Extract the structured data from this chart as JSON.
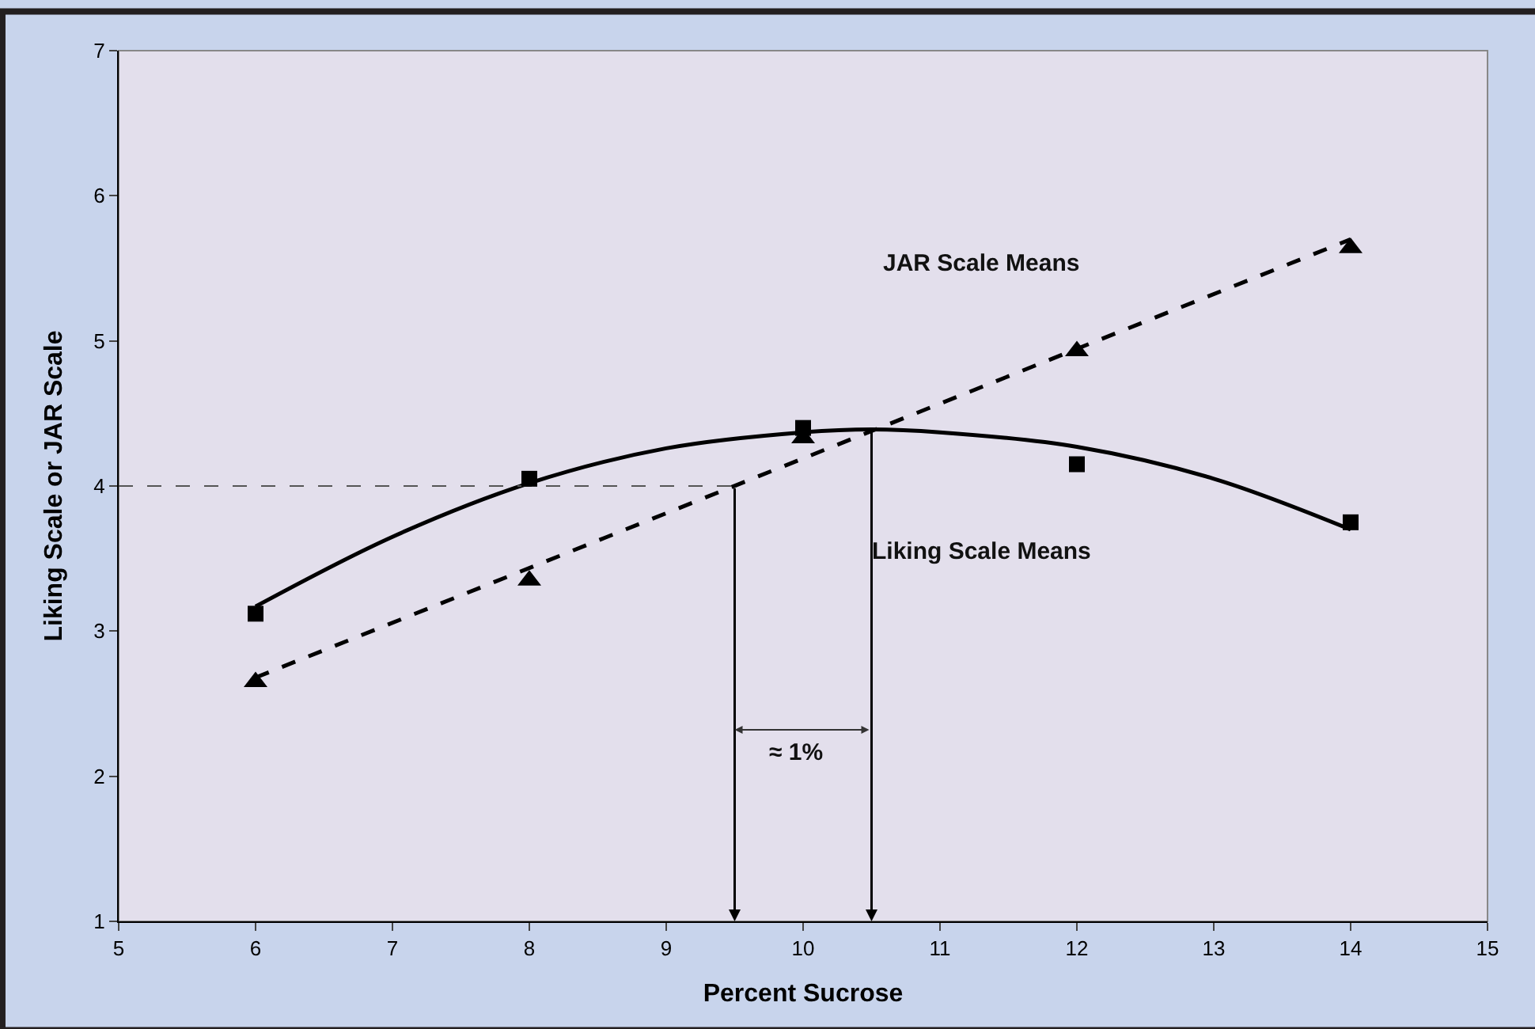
{
  "chart_data": {
    "type": "scatter",
    "xlabel": "Percent Sucrose",
    "ylabel": "Liking Scale or JAR Scale",
    "xlim": [
      5,
      15
    ],
    "xticks": [
      5,
      6,
      7,
      8,
      9,
      10,
      11,
      12,
      13,
      14,
      15
    ],
    "ylim": [
      1,
      7
    ],
    "yticks": [
      1,
      2,
      3,
      4,
      5,
      6,
      7
    ],
    "grid": false,
    "series": [
      {
        "marker": "square",
        "color": "#000000",
        "x": [
          6,
          8,
          10,
          12,
          14
        ],
        "values": [
          3.12,
          4.05,
          4.4,
          4.15,
          3.75
        ]
      },
      {
        "marker": "triangle",
        "color": "#000000",
        "x": [
          6,
          8,
          10,
          12,
          14
        ],
        "values": [
          2.65,
          3.35,
          4.33,
          4.93,
          5.64
        ]
      },
      {
        "type": "line",
        "line_style": "solid",
        "color": "#000000",
        "x": [
          6,
          7,
          8,
          9,
          10,
          10.5,
          11,
          12,
          13,
          14
        ],
        "values": [
          3.17,
          3.65,
          4.02,
          4.26,
          4.37,
          4.39,
          4.37,
          4.27,
          4.05,
          3.7
        ]
      },
      {
        "type": "line",
        "line_style": "dashed",
        "color": "#000000",
        "x": [
          6,
          14
        ],
        "values": [
          2.68,
          5.7
        ]
      },
      {
        "type": "line",
        "line_style": "dashed",
        "color": "#555555",
        "x": [
          5,
          9.5
        ],
        "values": [
          4,
          4
        ]
      }
    ],
    "annotations": [
      "JAR Scale Means",
      "Liking Scale Means",
      "≈ 1%"
    ]
  }
}
